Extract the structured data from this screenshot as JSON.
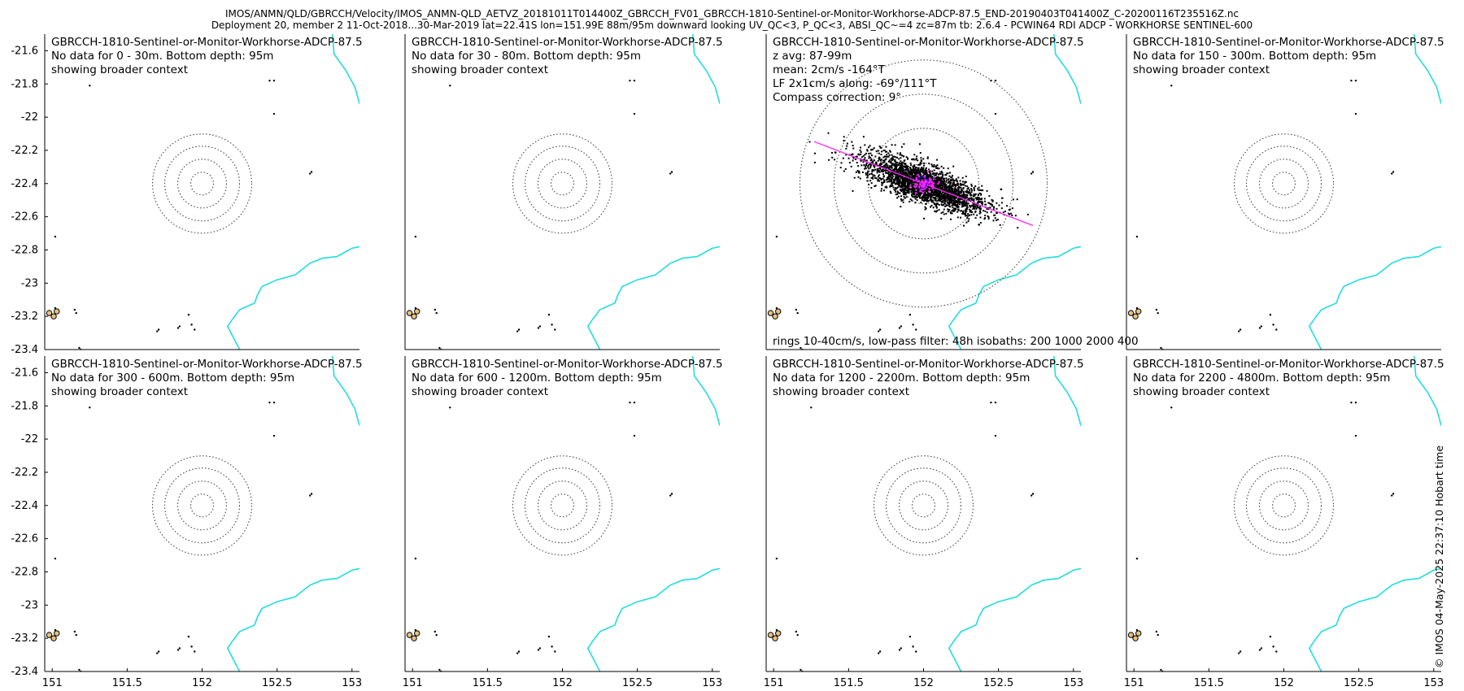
{
  "header": {
    "line1": "IMOS/ANMN/QLD/GBRCCH/Velocity/IMOS_ANMN-QLD_AETVZ_20181011T014400Z_GBRCCH_FV01_GBRCCH-1810-Sentinel-or-Monitor-Workhorse-ADCP-87.5_END-20190403T041400Z_C-20200116T235516Z.nc",
    "line2": "Deployment 20, member 2 11-Oct-2018...30-Mar-2019 lat=22.41S lon=151.99E 88m/95m downward looking UV_QC<3, P_QC<3, ABSI_QC~=4 zc=87m tb: 2.6.4 - PCWIN64 RDI ADCP - WORKHORSE SENTINEL-600"
  },
  "credit": "© IMOS 04-May-2025 22:37:10 Hobart time",
  "axes": {
    "xlim": [
      150.95,
      153.05
    ],
    "ylim": [
      -23.4,
      -21.5
    ],
    "xticks": [
      "151",
      "151.5",
      "152",
      "152.5",
      "153"
    ],
    "xtick_values": [
      151,
      151.5,
      152,
      152.5,
      153
    ],
    "yticks": [
      "-21.6",
      "-21.8",
      "-22",
      "-22.2",
      "-22.4",
      "-22.6",
      "-22.8",
      "-23",
      "-23.2",
      "-23.4"
    ],
    "ytick_values": [
      -21.6,
      -21.8,
      -22,
      -22.2,
      -22.4,
      -22.6,
      -22.8,
      -23,
      -23.2,
      -23.4
    ],
    "ring_center": [
      152,
      -22.4
    ]
  },
  "panels": [
    {
      "title": "GBRCCH-1810-Sentinel-or-Monitor-Workhorse-ADCP-87.5",
      "line2": "No data for 0 - 30m. Bottom depth: 95m",
      "line3": "showing broader context"
    },
    {
      "title": "GBRCCH-1810-Sentinel-or-Monitor-Workhorse-ADCP-87.5",
      "line2": "No data for 30 - 80m. Bottom depth: 95m",
      "line3": "showing broader context"
    },
    {
      "title": "GBRCCH-1810-Sentinel-or-Monitor-Workhorse-ADCP-87.5",
      "line2": "z avg: 87-99m",
      "line3": "mean: 2cm/s -164°T",
      "line4": "LF 2x1cm/s along: -69°/111°T",
      "line5": "Compass correction: 9°",
      "footer": "rings 10-40cm/s, low-pass filter: 48h isobaths: 200 1000 2000 400"
    },
    {
      "title": "GBRCCH-1810-Sentinel-or-Monitor-Workhorse-ADCP-87.5",
      "line2": "No data for 150 - 300m. Bottom depth: 95m",
      "line3": "showing broader context"
    },
    {
      "title": "GBRCCH-1810-Sentinel-or-Monitor-Workhorse-ADCP-87.5",
      "line2": "No data for 300 - 600m. Bottom depth: 95m",
      "line3": "showing broader context"
    },
    {
      "title": "GBRCCH-1810-Sentinel-or-Monitor-Workhorse-ADCP-87.5",
      "line2": "No data for 600 - 1200m. Bottom depth: 95m",
      "line3": "showing broader context"
    },
    {
      "title": "GBRCCH-1810-Sentinel-or-Monitor-Workhorse-ADCP-87.5",
      "line2": "No data for 1200 - 2200m. Bottom depth: 95m",
      "line3": "showing broader context"
    },
    {
      "title": "GBRCCH-1810-Sentinel-or-Monitor-Workhorse-ADCP-87.5",
      "line2": "No data for 2200 - 4800m. Bottom depth: 95m",
      "line3": "showing broader context"
    }
  ],
  "colors": {
    "coastline": "#22dddd",
    "rings": "#444444",
    "scatter": "#000000",
    "lowpass": "#ff22ff",
    "axis": "#000000",
    "island_fill": "#e8c080"
  }
}
